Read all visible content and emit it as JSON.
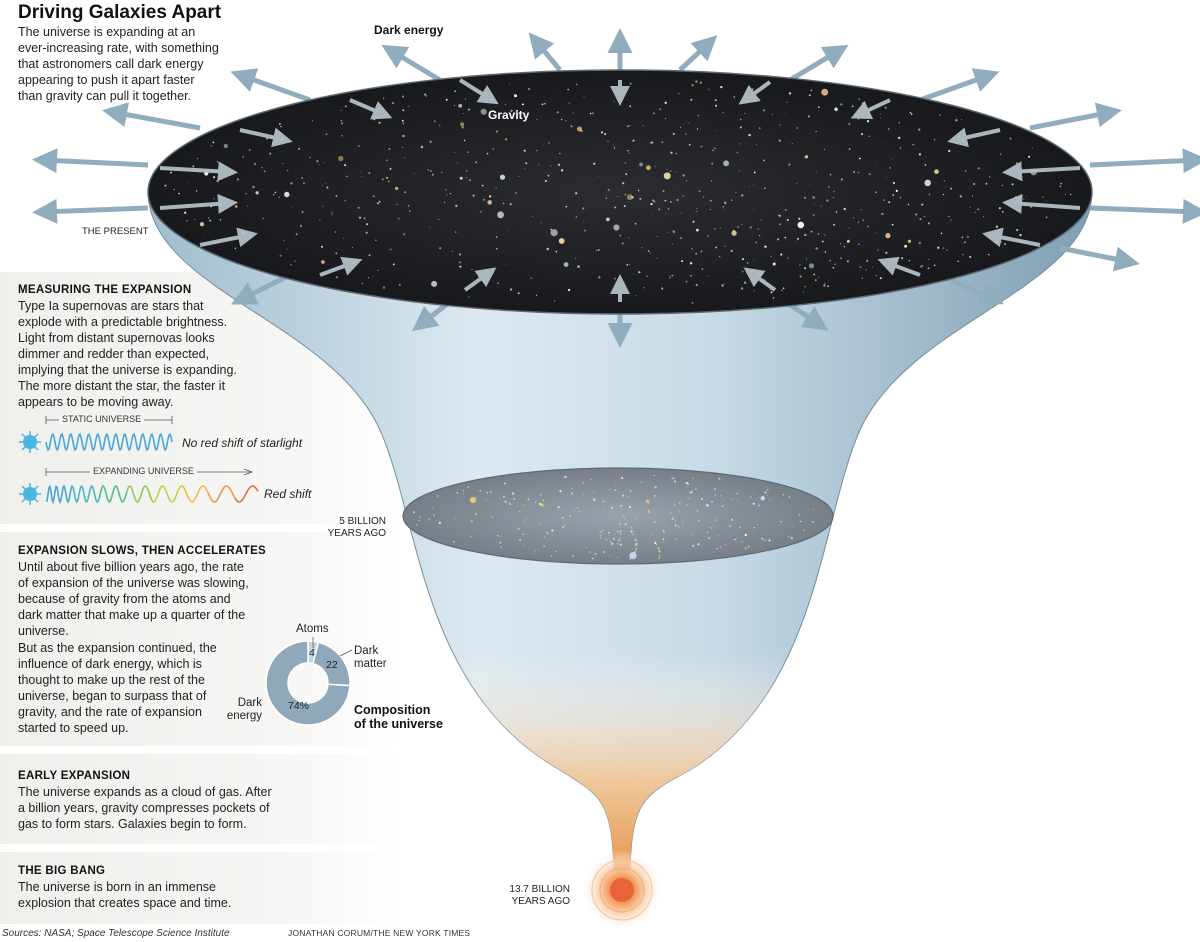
{
  "title": "Driving Galaxies Apart",
  "intro": [
    "The universe is expanding at an",
    "ever-increasing rate, with something",
    "that astronomers call dark energy",
    "appearing to push it apart faster",
    "than gravity can pull it together."
  ],
  "labels": {
    "dark_energy": "Dark energy",
    "gravity": "Gravity",
    "present": "THE PRESENT",
    "five_billion": [
      "5 BILLION",
      "YEARS AGO"
    ],
    "big_bang_time": [
      "13.7 BILLION",
      "YEARS AGO"
    ]
  },
  "measuring": {
    "heading": "MEASURING THE EXPANSION",
    "body": [
      "Type Ia supernovas are stars that",
      "explode with a predictable brightness.",
      "Light from distant supernovas looks",
      "dimmer and redder than expected,",
      "implying that the universe is expanding.",
      "The more distant the star, the faster it",
      "appears to be moving away."
    ],
    "static_label": "STATIC UNIVERSE",
    "static_caption": "No red shift of starlight",
    "expanding_label": "EXPANDING UNIVERSE",
    "expanding_caption": "Red shift"
  },
  "slows": {
    "heading": "EXPANSION SLOWS, THEN ACCELERATES",
    "body1": [
      "Until about five billion years ago, the rate",
      "of expansion of the universe was slowing,",
      "because of gravity from the atoms and",
      "dark matter that make up a quarter of the",
      "universe."
    ],
    "body2": [
      "But as the expansion continued, the",
      "influence of dark energy, which is",
      "thought to make up the rest of the",
      "universe, began to surpass that of",
      "gravity, and the rate of expansion",
      "started to speed up."
    ]
  },
  "early": {
    "heading": "EARLY EXPANSION",
    "body": [
      "The universe expands as a cloud of gas. After",
      "a billion years, gravity compresses pockets of",
      "gas to form stars. Galaxies begin to form."
    ]
  },
  "bigbang": {
    "heading": "THE BIG BANG",
    "body": [
      "The universe is born in an immense",
      "explosion that creates space and time."
    ]
  },
  "pie": {
    "title": [
      "Composition",
      "of the universe"
    ],
    "atoms_label": "Atoms",
    "dark_matter_label": [
      "Dark",
      "matter"
    ],
    "dark_energy_label": [
      "Dark",
      "energy"
    ],
    "atoms_value": "4",
    "dark_matter_value": "22",
    "dark_energy_value": "74%"
  },
  "chart_data": {
    "type": "pie",
    "title": "Composition of the universe",
    "categories": [
      "Atoms",
      "Dark matter",
      "Dark energy"
    ],
    "values": [
      4,
      22,
      74
    ]
  },
  "colors": {
    "funnel": "#c9dbe6",
    "funnel_dark": "#8fb0c4",
    "arrow": "#8aa8b8",
    "pie_fill": "#8fa9ba",
    "pie_light": "#c4d4de",
    "panel_bg": "#f0f0ec"
  },
  "sources": "Sources: NASA; Space Telescope Science Institute",
  "credit": "JONATHAN CORUM/THE NEW YORK TIMES"
}
